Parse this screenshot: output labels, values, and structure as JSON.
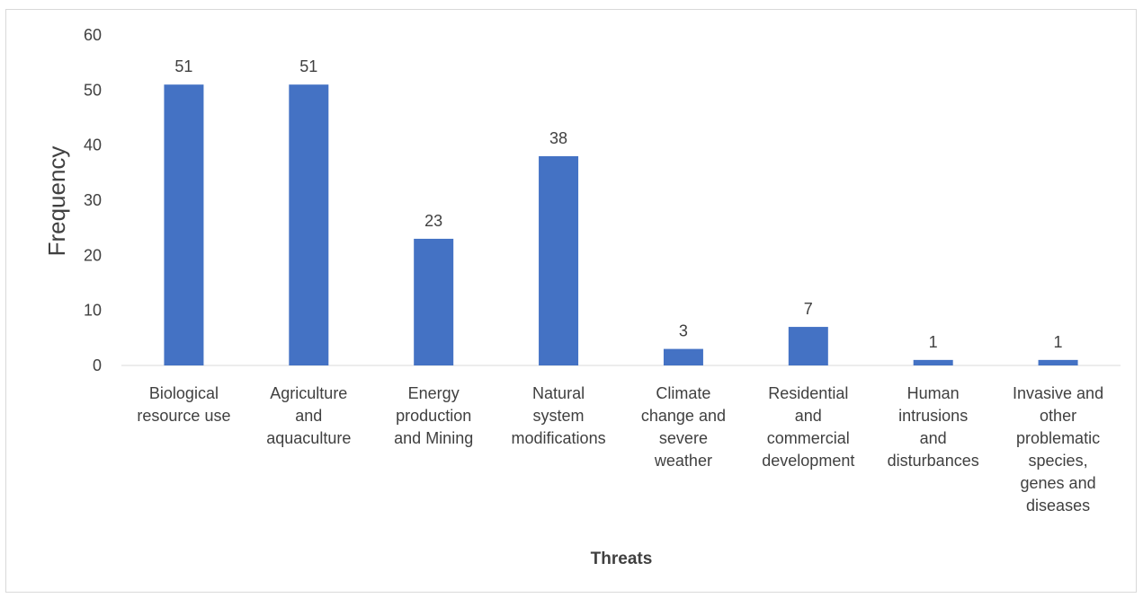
{
  "chart_data": {
    "type": "bar",
    "title": "",
    "xlabel": "Threats",
    "ylabel": "Frequency",
    "ylim": [
      0,
      60
    ],
    "yticks": [
      0,
      10,
      20,
      30,
      40,
      50,
      60
    ],
    "grid": false,
    "legend": "none",
    "categories": [
      [
        "Biological",
        "resource use"
      ],
      [
        "Agriculture",
        "and",
        "aquaculture"
      ],
      [
        "Energy",
        "production",
        "and Mining"
      ],
      [
        "Natural",
        "system",
        "modifications"
      ],
      [
        "Climate",
        "change and",
        "severe",
        "weather"
      ],
      [
        "Residential",
        "and",
        "commercial",
        "development"
      ],
      [
        "Human",
        "intrusions",
        "and",
        "disturbances"
      ],
      [
        "Invasive and",
        "other",
        "problematic",
        "species,",
        "genes and",
        "diseases"
      ]
    ],
    "values": [
      51,
      51,
      23,
      38,
      3,
      7,
      1,
      1
    ],
    "bar_color": "#4472c4"
  }
}
